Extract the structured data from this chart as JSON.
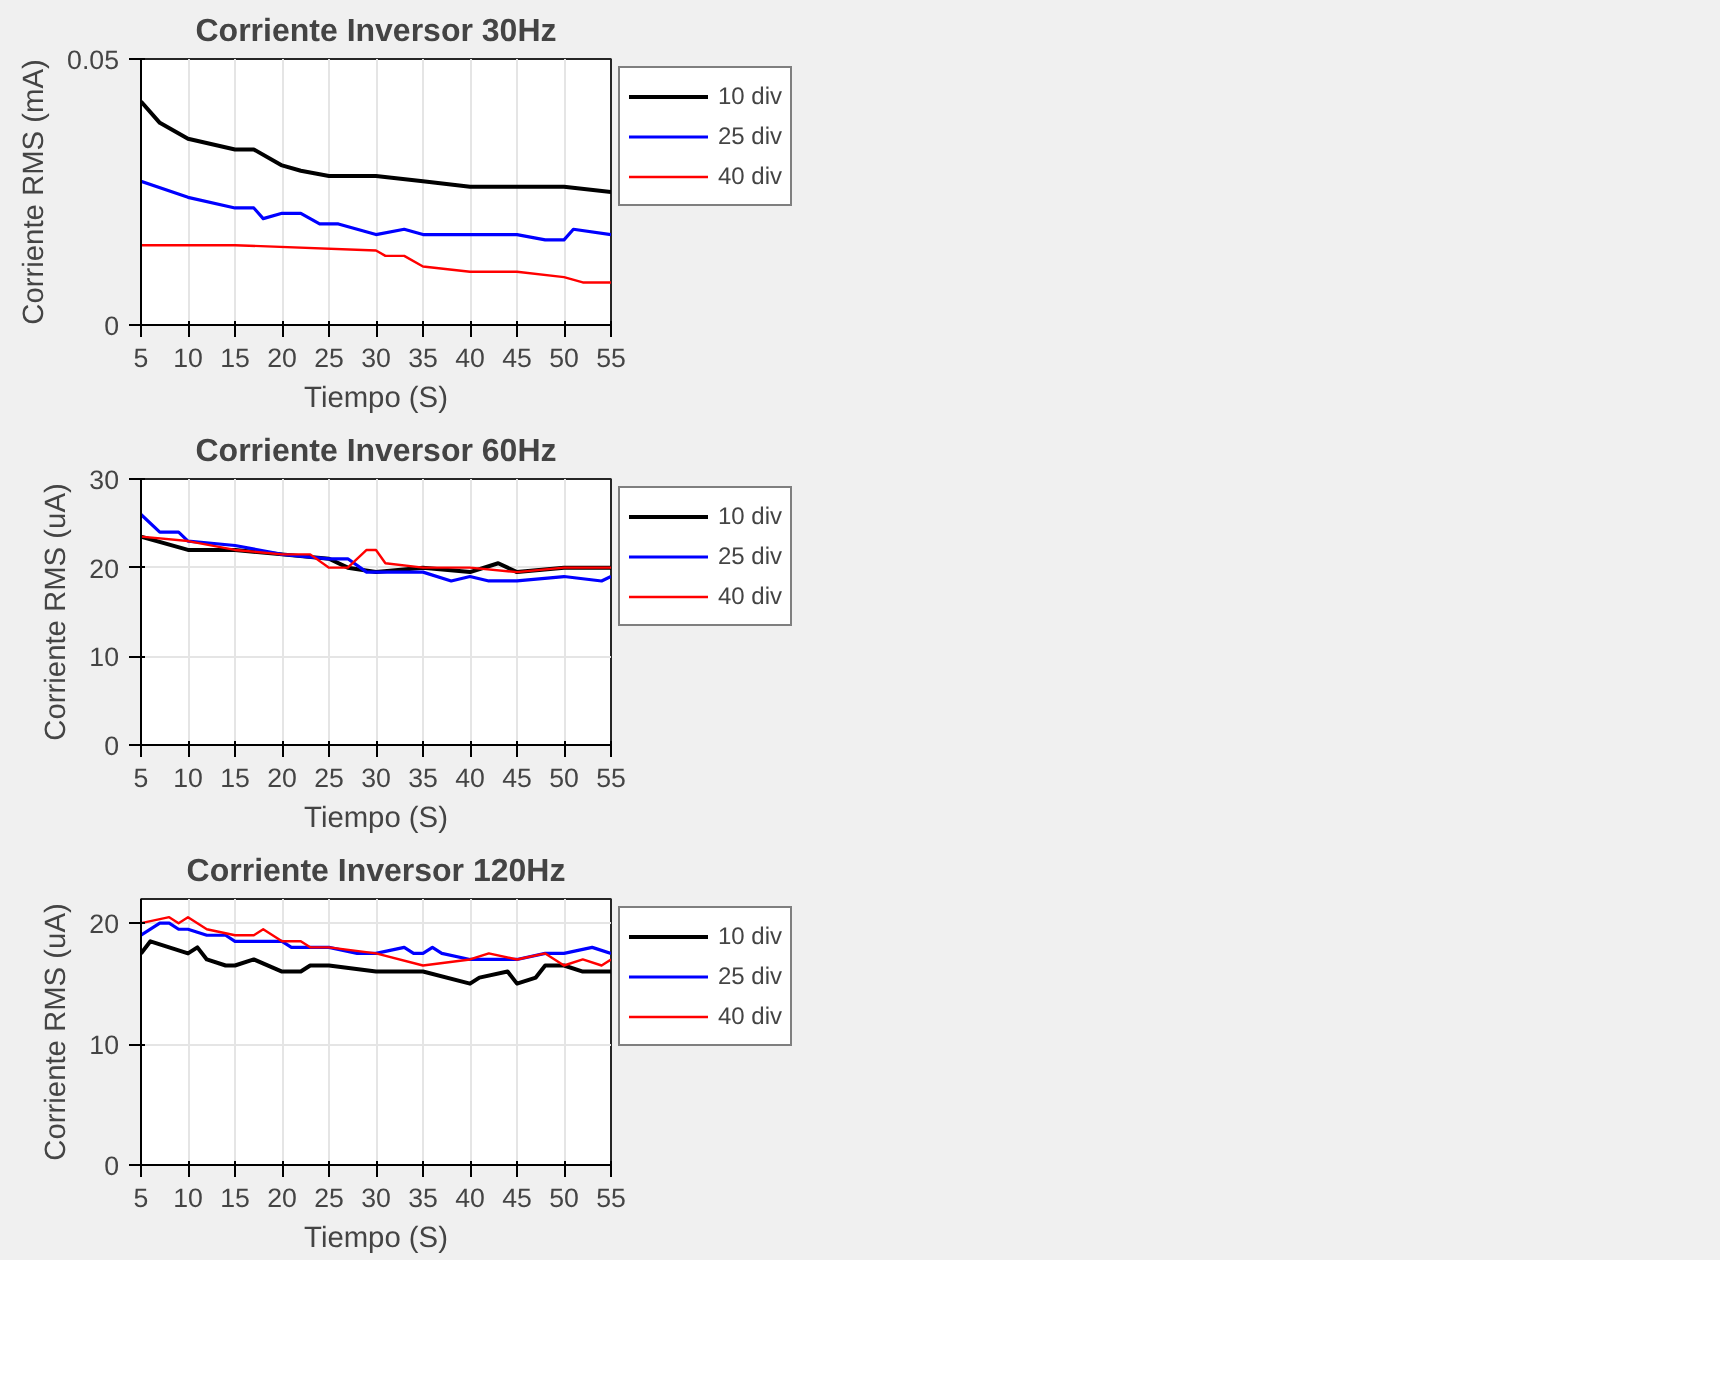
{
  "chart_data": [
    {
      "type": "line",
      "title": "Corriente Inversor 30Hz",
      "xlabel": "Tiempo (S)",
      "ylabel": "Corriente RMS (mA)",
      "xlim": [
        5,
        55
      ],
      "xticks": [
        5,
        10,
        15,
        20,
        25,
        30,
        35,
        40,
        45,
        50,
        55
      ],
      "ylim": [
        0,
        0.05
      ],
      "yticks": [
        0,
        0.05
      ],
      "grid": true,
      "legend": "right",
      "series": [
        {
          "name": "10 div",
          "color": "#000000",
          "x": [
            5,
            7,
            10,
            15,
            17,
            20,
            22,
            25,
            30,
            35,
            40,
            45,
            50,
            55
          ],
          "values": [
            0.042,
            0.038,
            0.035,
            0.033,
            0.033,
            0.03,
            0.029,
            0.028,
            0.028,
            0.027,
            0.026,
            0.026,
            0.026,
            0.025
          ]
        },
        {
          "name": "25 div",
          "color": "#0000ff",
          "x": [
            5,
            10,
            15,
            17,
            18,
            20,
            22,
            24,
            26,
            30,
            33,
            35,
            40,
            45,
            48,
            50,
            51,
            55
          ],
          "values": [
            0.027,
            0.024,
            0.022,
            0.022,
            0.02,
            0.021,
            0.021,
            0.019,
            0.019,
            0.017,
            0.018,
            0.017,
            0.017,
            0.017,
            0.016,
            0.016,
            0.018,
            0.017
          ]
        },
        {
          "name": "40 div",
          "color": "#ff0000",
          "x": [
            5,
            15,
            30,
            31,
            33,
            35,
            40,
            45,
            50,
            52,
            55
          ],
          "values": [
            0.015,
            0.015,
            0.014,
            0.013,
            0.013,
            0.011,
            0.01,
            0.01,
            0.009,
            0.008,
            0.008
          ]
        }
      ]
    },
    {
      "type": "line",
      "title": "Corriente Inversor 60Hz",
      "xlabel": "Tiempo (S)",
      "ylabel": "Corriente RMS (uA)",
      "xlim": [
        5,
        55
      ],
      "xticks": [
        5,
        10,
        15,
        20,
        25,
        30,
        35,
        40,
        45,
        50,
        55
      ],
      "ylim": [
        0,
        30
      ],
      "yticks": [
        0,
        10,
        20,
        30
      ],
      "grid": true,
      "legend": "right",
      "series": [
        {
          "name": "10 div",
          "color": "#000000",
          "x": [
            5,
            10,
            15,
            20,
            25,
            27,
            30,
            35,
            40,
            43,
            45,
            50,
            55
          ],
          "values": [
            23.5,
            22,
            22,
            21.5,
            21,
            20,
            19.5,
            20,
            19.5,
            20.5,
            19.5,
            20,
            20
          ]
        },
        {
          "name": "25 div",
          "color": "#0000ff",
          "x": [
            5,
            7,
            9,
            10,
            15,
            20,
            25,
            27,
            29,
            30,
            35,
            38,
            40,
            42,
            45,
            50,
            54,
            55
          ],
          "values": [
            26,
            24,
            24,
            23,
            22.5,
            21.5,
            21,
            21,
            19.5,
            19.5,
            19.5,
            18.5,
            19,
            18.5,
            18.5,
            19,
            18.5,
            19
          ]
        },
        {
          "name": "40 div",
          "color": "#ff0000",
          "x": [
            5,
            10,
            15,
            20,
            23,
            25,
            27,
            29,
            30,
            31,
            35,
            40,
            45,
            50,
            55
          ],
          "values": [
            23.5,
            23,
            22,
            21.5,
            21.5,
            20,
            20,
            22,
            22,
            20.5,
            20,
            20,
            19.5,
            20,
            20
          ]
        }
      ]
    },
    {
      "type": "line",
      "title": "Corriente Inversor 120Hz",
      "xlabel": "Tiempo (S)",
      "ylabel": "Corriente RMS (uA)",
      "xlim": [
        5,
        55
      ],
      "xticks": [
        5,
        10,
        15,
        20,
        25,
        30,
        35,
        40,
        45,
        50,
        55
      ],
      "ylim": [
        0,
        22
      ],
      "yticks": [
        0,
        10,
        20
      ],
      "grid": true,
      "legend": "right",
      "series": [
        {
          "name": "10 div",
          "color": "#000000",
          "x": [
            5,
            6,
            10,
            11,
            12,
            14,
            15,
            17,
            20,
            22,
            23,
            25,
            30,
            35,
            40,
            41,
            44,
            45,
            47,
            48,
            50,
            52,
            55
          ],
          "values": [
            17.5,
            18.5,
            17.5,
            18,
            17,
            16.5,
            16.5,
            17,
            16,
            16,
            16.5,
            16.5,
            16,
            16,
            15,
            15.5,
            16,
            15,
            15.5,
            16.5,
            16.5,
            16,
            16
          ]
        },
        {
          "name": "25 div",
          "color": "#0000ff",
          "x": [
            5,
            7,
            8,
            9,
            10,
            12,
            14,
            15,
            18,
            20,
            21,
            23,
            25,
            28,
            30,
            33,
            34,
            35,
            36,
            37,
            40,
            45,
            48,
            50,
            53,
            55
          ],
          "values": [
            19,
            20,
            20,
            19.5,
            19.5,
            19,
            19,
            18.5,
            18.5,
            18.5,
            18,
            18,
            18,
            17.5,
            17.5,
            18,
            17.5,
            17.5,
            18,
            17.5,
            17,
            17,
            17.5,
            17.5,
            18,
            17.5
          ]
        },
        {
          "name": "40 div",
          "color": "#ff0000",
          "x": [
            5,
            8,
            9,
            10,
            12,
            15,
            17,
            18,
            20,
            22,
            23,
            25,
            30,
            35,
            40,
            42,
            45,
            48,
            50,
            52,
            54,
            55
          ],
          "values": [
            20,
            20.5,
            20,
            20.5,
            19.5,
            19,
            19,
            19.5,
            18.5,
            18.5,
            18,
            18,
            17.5,
            16.5,
            17,
            17.5,
            17,
            17.5,
            16.5,
            17,
            16.5,
            17
          ]
        }
      ]
    }
  ]
}
